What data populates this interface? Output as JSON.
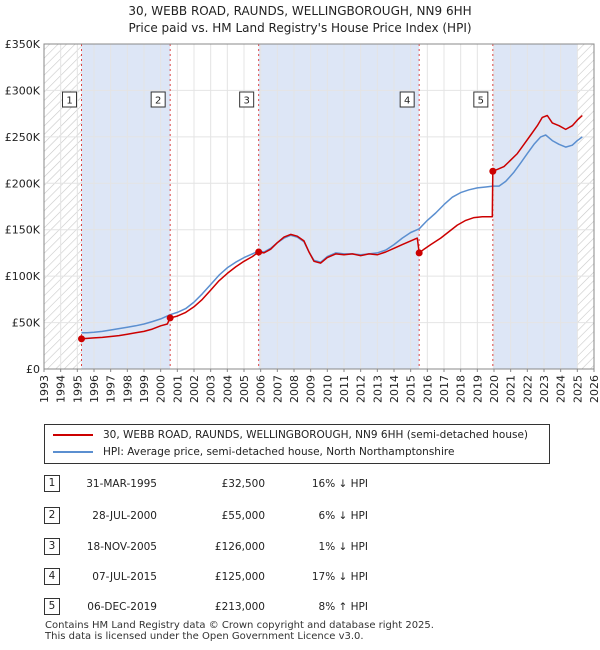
{
  "title_line1": "30, WEBB ROAD, RAUNDS, WELLINGBOROUGH, NN9 6HH",
  "title_line2": "Price paid vs. HM Land Registry's House Price Index (HPI)",
  "chart_data": {
    "type": "line",
    "xlim": [
      1993,
      2026
    ],
    "ylim": [
      0,
      350000
    ],
    "y_ticks": [
      {
        "value": 0,
        "label": "£0"
      },
      {
        "value": 50000,
        "label": "£50K"
      },
      {
        "value": 100000,
        "label": "£100K"
      },
      {
        "value": 150000,
        "label": "£150K"
      },
      {
        "value": 200000,
        "label": "£200K"
      },
      {
        "value": 250000,
        "label": "£250K"
      },
      {
        "value": 300000,
        "label": "£300K"
      },
      {
        "value": 350000,
        "label": "£350K"
      }
    ],
    "x_ticks": [
      "1993",
      "1994",
      "1995",
      "1996",
      "1997",
      "1998",
      "1999",
      "2000",
      "2001",
      "2002",
      "2003",
      "2004",
      "2005",
      "2006",
      "2007",
      "2008",
      "2009",
      "2010",
      "2011",
      "2012",
      "2013",
      "2014",
      "2015",
      "2016",
      "2017",
      "2018",
      "2019",
      "2020",
      "2021",
      "2022",
      "2023",
      "2024",
      "2025",
      "2026"
    ],
    "hatched_ranges": [
      [
        1993,
        1995.25
      ],
      [
        2025.0,
        2026
      ]
    ],
    "sale_bands": [
      [
        1995.25,
        2000.57
      ],
      [
        2005.88,
        2015.51
      ],
      [
        2019.93,
        2025.0
      ]
    ],
    "colors": {
      "price_paid": "#cc0000",
      "hpi": "#5b8fd0",
      "band": "#dde6f6",
      "marker": "#cc0000"
    },
    "sales": [
      {
        "n": "1",
        "x": 1995.25,
        "y": 32500
      },
      {
        "n": "2",
        "x": 2000.57,
        "y": 55000
      },
      {
        "n": "3",
        "x": 2005.88,
        "y": 126000
      },
      {
        "n": "4",
        "x": 2015.51,
        "y": 125000
      },
      {
        "n": "5",
        "x": 2019.93,
        "y": 213000
      }
    ],
    "series": [
      {
        "name": "30, WEBB ROAD, RAUNDS, WELLINGBOROUGH, NN9 6HH (semi-detached house)",
        "color": "#cc0000",
        "points": [
          [
            1995.25,
            32500
          ],
          [
            1995.6,
            33000
          ],
          [
            1996,
            33500
          ],
          [
            1996.5,
            34000
          ],
          [
            1997,
            35000
          ],
          [
            1997.5,
            36000
          ],
          [
            1998,
            37500
          ],
          [
            1998.5,
            39000
          ],
          [
            1999,
            40500
          ],
          [
            1999.5,
            43000
          ],
          [
            2000,
            46500
          ],
          [
            2000.4,
            48500
          ],
          [
            2000.57,
            55000
          ],
          [
            2001,
            57000
          ],
          [
            2001.5,
            61000
          ],
          [
            2002,
            67000
          ],
          [
            2002.5,
            75000
          ],
          [
            2003,
            85000
          ],
          [
            2003.5,
            95000
          ],
          [
            2004,
            103000
          ],
          [
            2004.5,
            110000
          ],
          [
            2005,
            116000
          ],
          [
            2005.5,
            121000
          ],
          [
            2005.88,
            126000
          ],
          [
            2006.2,
            125000
          ],
          [
            2006.6,
            129000
          ],
          [
            2007,
            136000
          ],
          [
            2007.4,
            142000
          ],
          [
            2007.8,
            145000
          ],
          [
            2008.2,
            143000
          ],
          [
            2008.6,
            138000
          ],
          [
            2008.9,
            126000
          ],
          [
            2009.2,
            116000
          ],
          [
            2009.6,
            114000
          ],
          [
            2010,
            120000
          ],
          [
            2010.5,
            124000
          ],
          [
            2011,
            123000
          ],
          [
            2011.5,
            124000
          ],
          [
            2012,
            122000
          ],
          [
            2012.5,
            124000
          ],
          [
            2013,
            123000
          ],
          [
            2013.5,
            126000
          ],
          [
            2014,
            130000
          ],
          [
            2014.5,
            134000
          ],
          [
            2015,
            138000
          ],
          [
            2015.4,
            141000
          ],
          [
            2015.51,
            125000
          ],
          [
            2015.8,
            129000
          ],
          [
            2016.2,
            134000
          ],
          [
            2016.8,
            141000
          ],
          [
            2017.3,
            148000
          ],
          [
            2017.8,
            155000
          ],
          [
            2018.3,
            160000
          ],
          [
            2018.8,
            163000
          ],
          [
            2019.3,
            164000
          ],
          [
            2019.9,
            164000
          ],
          [
            2019.93,
            213000
          ],
          [
            2020.2,
            215000
          ],
          [
            2020.6,
            218000
          ],
          [
            2021,
            225000
          ],
          [
            2021.4,
            232000
          ],
          [
            2021.8,
            242000
          ],
          [
            2022.2,
            252000
          ],
          [
            2022.6,
            262000
          ],
          [
            2022.9,
            271000
          ],
          [
            2023.2,
            273000
          ],
          [
            2023.5,
            265000
          ],
          [
            2023.9,
            262000
          ],
          [
            2024.3,
            258000
          ],
          [
            2024.7,
            262000
          ],
          [
            2025,
            268000
          ],
          [
            2025.3,
            273000
          ]
        ]
      },
      {
        "name": "HPI: Average price, semi-detached house, North Northamptonshire",
        "color": "#5b8fd0",
        "points": [
          [
            1995.25,
            39000
          ],
          [
            1995.6,
            39000
          ],
          [
            1996,
            39500
          ],
          [
            1996.5,
            40500
          ],
          [
            1997,
            42000
          ],
          [
            1997.5,
            43500
          ],
          [
            1998,
            45000
          ],
          [
            1998.5,
            46500
          ],
          [
            1999,
            48500
          ],
          [
            1999.5,
            51000
          ],
          [
            2000,
            54000
          ],
          [
            2000.57,
            58500
          ],
          [
            2001,
            61000
          ],
          [
            2001.5,
            65000
          ],
          [
            2002,
            72000
          ],
          [
            2002.5,
            81000
          ],
          [
            2003,
            91000
          ],
          [
            2003.5,
            101000
          ],
          [
            2004,
            109000
          ],
          [
            2004.5,
            115000
          ],
          [
            2005,
            120000
          ],
          [
            2005.5,
            124000
          ],
          [
            2005.88,
            127000
          ],
          [
            2006.2,
            126000
          ],
          [
            2006.6,
            130000
          ],
          [
            2007,
            136000
          ],
          [
            2007.4,
            141000
          ],
          [
            2007.8,
            144000
          ],
          [
            2008.2,
            142000
          ],
          [
            2008.6,
            137000
          ],
          [
            2008.9,
            126000
          ],
          [
            2009.2,
            117000
          ],
          [
            2009.6,
            115000
          ],
          [
            2010,
            121000
          ],
          [
            2010.5,
            125000
          ],
          [
            2011,
            124000
          ],
          [
            2011.5,
            124000
          ],
          [
            2012,
            123000
          ],
          [
            2012.5,
            124000
          ],
          [
            2013,
            125000
          ],
          [
            2013.5,
            128000
          ],
          [
            2014,
            134000
          ],
          [
            2014.5,
            141000
          ],
          [
            2015,
            147000
          ],
          [
            2015.51,
            151000
          ],
          [
            2016,
            160000
          ],
          [
            2016.5,
            168000
          ],
          [
            2017,
            177000
          ],
          [
            2017.5,
            185000
          ],
          [
            2018,
            190000
          ],
          [
            2018.5,
            193000
          ],
          [
            2019,
            195000
          ],
          [
            2019.5,
            196000
          ],
          [
            2019.93,
            197000
          ],
          [
            2020.3,
            197000
          ],
          [
            2020.7,
            202000
          ],
          [
            2021.2,
            212000
          ],
          [
            2021.6,
            222000
          ],
          [
            2022,
            232000
          ],
          [
            2022.4,
            242000
          ],
          [
            2022.8,
            250000
          ],
          [
            2023.1,
            252000
          ],
          [
            2023.5,
            246000
          ],
          [
            2023.9,
            242000
          ],
          [
            2024.3,
            239000
          ],
          [
            2024.7,
            241000
          ],
          [
            2025,
            246000
          ],
          [
            2025.3,
            250000
          ]
        ]
      }
    ]
  },
  "legend": {
    "price_label": "30, WEBB ROAD, RAUNDS, WELLINGBOROUGH, NN9 6HH (semi-detached house)",
    "hpi_label": "HPI: Average price, semi-detached house, North Northamptonshire"
  },
  "sales_table": [
    {
      "n": "1",
      "date": "31-MAR-1995",
      "price": "£32,500",
      "hpi": "16% ↓ HPI"
    },
    {
      "n": "2",
      "date": "28-JUL-2000",
      "price": "£55,000",
      "hpi": "6% ↓ HPI"
    },
    {
      "n": "3",
      "date": "18-NOV-2005",
      "price": "£126,000",
      "hpi": "1% ↓ HPI"
    },
    {
      "n": "4",
      "date": "07-JUL-2015",
      "price": "£125,000",
      "hpi": "17% ↓ HPI"
    },
    {
      "n": "5",
      "date": "06-DEC-2019",
      "price": "£213,000",
      "hpi": "8% ↑ HPI"
    }
  ],
  "footer_line1": "Contains HM Land Registry data © Crown copyright and database right 2025.",
  "footer_line2": "This data is licensed under the Open Government Licence v3.0."
}
